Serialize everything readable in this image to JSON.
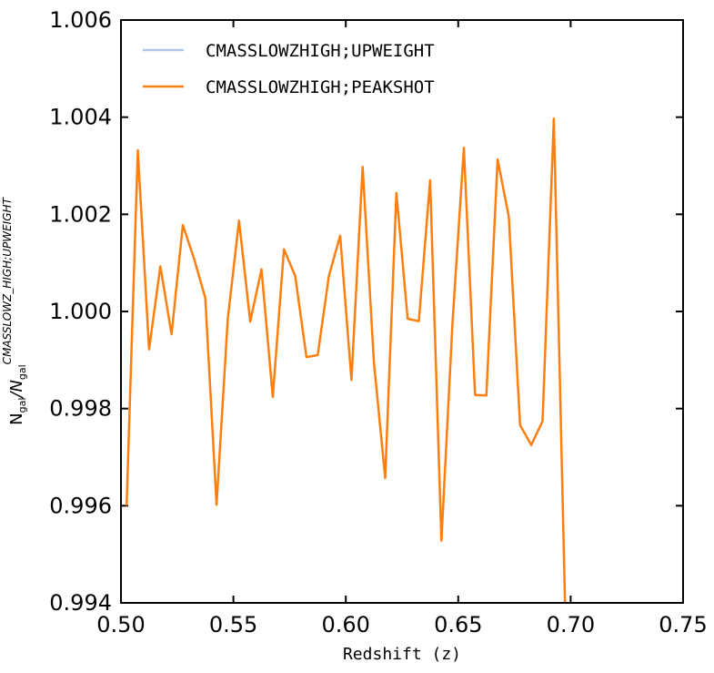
{
  "chart_data": {
    "type": "line",
    "xlabel": "Redshift (z)",
    "ylabel_main": "N",
    "ylabel_sub1": "gal",
    "ylabel_mid": "/N",
    "ylabel_sub2": "gal",
    "ylabel_sup": "CMASSLOWZ_HIGH;UPWEIGHT",
    "xlim": [
      0.5,
      0.75
    ],
    "ylim": [
      0.994,
      1.006
    ],
    "xticks": [
      "0.50",
      "0.55",
      "0.60",
      "0.65",
      "0.70",
      "0.75"
    ],
    "yticks": [
      "0.994",
      "0.996",
      "0.998",
      "1.000",
      "1.002",
      "1.004",
      "1.006"
    ],
    "legend_position": "top-left",
    "series": [
      {
        "name": "CMASSLOWZHIGH;UPWEIGHT",
        "color": "#aec7e8",
        "x": [
          0.5025,
          0.5075,
          0.5125,
          0.5175,
          0.5225,
          0.5275,
          0.5325,
          0.5375,
          0.5425,
          0.5475,
          0.5525,
          0.5575,
          0.5625,
          0.5675,
          0.5725,
          0.5775,
          0.5825,
          0.5875,
          0.5925,
          0.5975,
          0.6025,
          0.6075,
          0.6125,
          0.6175,
          0.6225,
          0.6275,
          0.6325,
          0.6375,
          0.6425,
          0.6475,
          0.6525,
          0.6575,
          0.6625,
          0.6675,
          0.6725,
          0.6775,
          0.6825,
          0.6875,
          0.6925,
          0.6975
        ],
        "y": [
          1.0,
          1.0,
          1.0,
          1.0,
          1.0,
          1.0,
          1.0,
          1.0,
          1.0,
          1.0,
          1.0,
          1.0,
          1.0,
          1.0,
          1.0,
          1.0,
          1.0,
          1.0,
          1.0,
          1.0,
          1.0,
          1.0,
          1.0,
          1.0,
          1.0,
          1.0,
          1.0,
          1.0,
          1.0,
          1.0,
          1.0,
          1.0,
          1.0,
          1.0,
          1.0,
          1.0,
          1.0,
          1.0,
          1.0,
          1.0
        ],
        "drawn": false
      },
      {
        "name": "CMASSLOWZHIGH;PEAKSHOT",
        "color": "#ff7f0e",
        "x": [
          0.5025,
          0.5075,
          0.5125,
          0.5175,
          0.5225,
          0.5275,
          0.5325,
          0.5375,
          0.5425,
          0.5475,
          0.5525,
          0.5575,
          0.5625,
          0.5675,
          0.5725,
          0.5775,
          0.5825,
          0.5875,
          0.5925,
          0.5975,
          0.6025,
          0.6075,
          0.6125,
          0.6175,
          0.6225,
          0.6275,
          0.6325,
          0.6375,
          0.6425,
          0.6475,
          0.6525,
          0.6575,
          0.6625,
          0.6675,
          0.6725,
          0.6775,
          0.6825,
          0.6875,
          0.6925,
          0.6975
        ],
        "y": [
          0.996,
          1.00332,
          0.99922,
          1.00093,
          0.99953,
          1.00178,
          1.00109,
          1.00028,
          0.99602,
          0.99984,
          1.00187,
          0.99979,
          1.00087,
          0.99824,
          1.00128,
          1.00073,
          0.99906,
          0.9991,
          1.00074,
          1.00156,
          0.99859,
          1.00298,
          0.99895,
          0.99657,
          1.00244,
          0.99985,
          0.9998,
          1.0027,
          0.99528,
          0.9998,
          1.00337,
          0.99828,
          0.99827,
          1.00313,
          1.00195,
          0.99766,
          0.99725,
          0.99774,
          1.00397,
          0.994
        ]
      }
    ]
  }
}
